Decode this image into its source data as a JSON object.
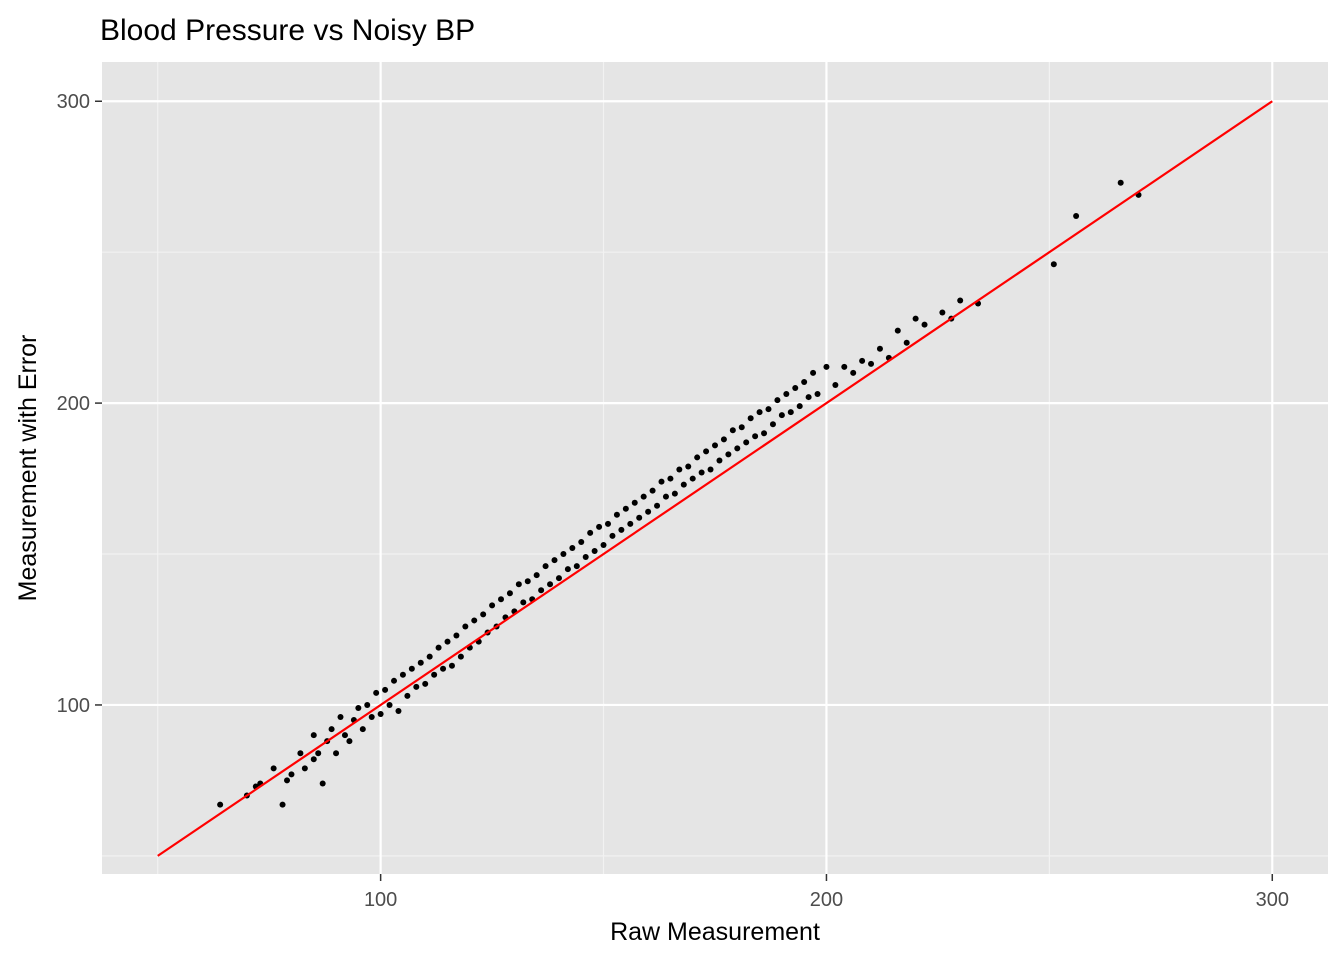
{
  "chart_data": {
    "type": "scatter",
    "title": "Blood Pressure vs Noisy BP",
    "xlabel": "Raw Measurement",
    "ylabel": "Measurement with Error",
    "xlim": [
      37.5,
      312.5
    ],
    "ylim": [
      44,
      313
    ],
    "x_ticks": [
      100,
      200,
      300
    ],
    "y_ticks": [
      100,
      200,
      300
    ],
    "x_tick_labels": [
      "100",
      "200",
      "300"
    ],
    "y_tick_labels": [
      "100",
      "200",
      "300"
    ],
    "grid": true,
    "legend": "none",
    "colors": {
      "panel_background": "#e5e5e5",
      "grid_major": "#ffffff",
      "grid_minor": "#f2f2f2",
      "points": "#000000",
      "reference_line": "#ff0000",
      "axis_tick": "#333333"
    },
    "series": [
      {
        "points": [
          [
            64,
            67
          ],
          [
            70,
            70
          ],
          [
            73,
            74
          ],
          [
            72,
            73
          ],
          [
            78,
            67
          ],
          [
            76,
            79
          ],
          [
            79,
            75
          ],
          [
            80,
            77
          ],
          [
            82,
            84
          ],
          [
            83,
            79
          ],
          [
            85,
            90
          ],
          [
            85,
            82
          ],
          [
            86,
            84
          ],
          [
            87,
            74
          ],
          [
            88,
            88
          ],
          [
            89,
            92
          ],
          [
            90,
            84
          ],
          [
            91,
            96
          ],
          [
            92,
            90
          ],
          [
            93,
            88
          ],
          [
            94,
            95
          ],
          [
            95,
            99
          ],
          [
            96,
            92
          ],
          [
            97,
            100
          ],
          [
            98,
            96
          ],
          [
            99,
            104
          ],
          [
            100,
            97
          ],
          [
            101,
            105
          ],
          [
            102,
            100
          ],
          [
            103,
            108
          ],
          [
            104,
            98
          ],
          [
            105,
            110
          ],
          [
            106,
            103
          ],
          [
            107,
            112
          ],
          [
            108,
            106
          ],
          [
            109,
            114
          ],
          [
            110,
            107
          ],
          [
            111,
            116
          ],
          [
            112,
            110
          ],
          [
            113,
            119
          ],
          [
            114,
            112
          ],
          [
            115,
            121
          ],
          [
            116,
            113
          ],
          [
            117,
            123
          ],
          [
            118,
            116
          ],
          [
            119,
            126
          ],
          [
            120,
            119
          ],
          [
            121,
            128
          ],
          [
            122,
            121
          ],
          [
            123,
            130
          ],
          [
            124,
            124
          ],
          [
            125,
            133
          ],
          [
            126,
            126
          ],
          [
            127,
            135
          ],
          [
            128,
            129
          ],
          [
            129,
            137
          ],
          [
            130,
            131
          ],
          [
            131,
            140
          ],
          [
            132,
            134
          ],
          [
            133,
            141
          ],
          [
            134,
            135
          ],
          [
            135,
            143
          ],
          [
            136,
            138
          ],
          [
            137,
            146
          ],
          [
            138,
            140
          ],
          [
            139,
            148
          ],
          [
            140,
            142
          ],
          [
            141,
            150
          ],
          [
            142,
            145
          ],
          [
            143,
            152
          ],
          [
            144,
            146
          ],
          [
            145,
            154
          ],
          [
            146,
            149
          ],
          [
            147,
            157
          ],
          [
            148,
            151
          ],
          [
            149,
            159
          ],
          [
            150,
            153
          ],
          [
            151,
            160
          ],
          [
            152,
            156
          ],
          [
            153,
            163
          ],
          [
            154,
            158
          ],
          [
            155,
            165
          ],
          [
            156,
            160
          ],
          [
            157,
            167
          ],
          [
            158,
            162
          ],
          [
            159,
            169
          ],
          [
            160,
            164
          ],
          [
            161,
            171
          ],
          [
            162,
            166
          ],
          [
            163,
            174
          ],
          [
            164,
            169
          ],
          [
            165,
            175
          ],
          [
            166,
            170
          ],
          [
            167,
            178
          ],
          [
            168,
            173
          ],
          [
            169,
            179
          ],
          [
            170,
            175
          ],
          [
            171,
            182
          ],
          [
            172,
            177
          ],
          [
            173,
            184
          ],
          [
            174,
            178
          ],
          [
            175,
            186
          ],
          [
            176,
            181
          ],
          [
            177,
            188
          ],
          [
            178,
            183
          ],
          [
            179,
            191
          ],
          [
            180,
            185
          ],
          [
            181,
            192
          ],
          [
            182,
            187
          ],
          [
            183,
            195
          ],
          [
            184,
            189
          ],
          [
            185,
            197
          ],
          [
            186,
            190
          ],
          [
            187,
            198
          ],
          [
            188,
            193
          ],
          [
            189,
            201
          ],
          [
            190,
            196
          ],
          [
            191,
            203
          ],
          [
            192,
            197
          ],
          [
            193,
            205
          ],
          [
            194,
            199
          ],
          [
            195,
            207
          ],
          [
            196,
            202
          ],
          [
            197,
            210
          ],
          [
            198,
            203
          ],
          [
            200,
            212
          ],
          [
            202,
            206
          ],
          [
            204,
            212
          ],
          [
            206,
            210
          ],
          [
            208,
            214
          ],
          [
            210,
            213
          ],
          [
            212,
            218
          ],
          [
            214,
            215
          ],
          [
            216,
            224
          ],
          [
            218,
            220
          ],
          [
            220,
            228
          ],
          [
            222,
            226
          ],
          [
            226,
            230
          ],
          [
            228,
            228
          ],
          [
            230,
            234
          ],
          [
            234,
            233
          ],
          [
            251,
            246
          ],
          [
            256,
            262
          ],
          [
            266,
            273
          ],
          [
            270,
            269
          ]
        ]
      }
    ],
    "reference_line": {
      "x": [
        50,
        300
      ],
      "y": [
        50,
        300
      ]
    }
  }
}
